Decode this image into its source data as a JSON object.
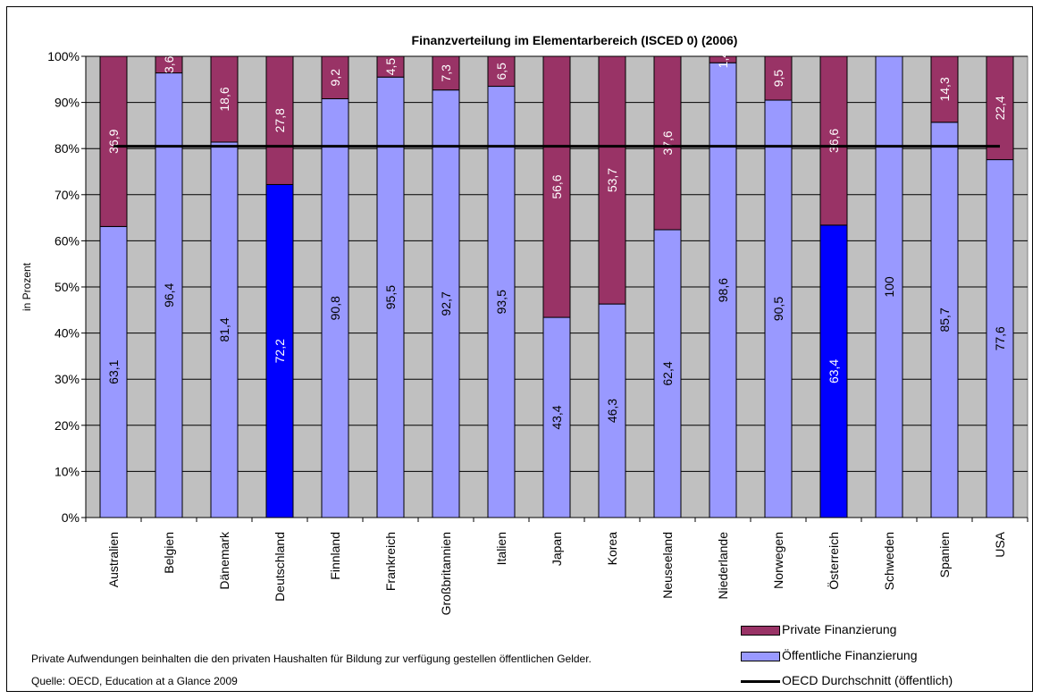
{
  "chart_data": {
    "type": "bar",
    "stacked": true,
    "title": "Finanzverteilung im Elementarbereich (ISCED 0) (2006)",
    "ylabel": "in Prozent",
    "xlabel": "",
    "ylim": [
      0,
      100
    ],
    "yticks": [
      "0%",
      "10%",
      "20%",
      "30%",
      "40%",
      "50%",
      "60%",
      "70%",
      "80%",
      "90%",
      "100%"
    ],
    "grid": true,
    "legend_position": "bottom-right",
    "categories": [
      "Australien",
      "Belgien",
      "Dänemark",
      "Deutschland",
      "Finnland",
      "Frankreich",
      "Großbritannien",
      "Italien",
      "Japan",
      "Korea",
      "Neuseeland",
      "Niederlande",
      "Norwegen",
      "Österreich",
      "Schweden",
      "Spanien",
      "USA"
    ],
    "series": [
      {
        "name": "Öffentliche Finanzierung",
        "color": "#9999ff",
        "highlight_color": "#0000ff",
        "highlight": [
          "Deutschland",
          "Österreich"
        ],
        "values": [
          63.1,
          96.4,
          81.4,
          72.2,
          90.8,
          95.5,
          92.7,
          93.5,
          43.4,
          46.3,
          62.4,
          98.6,
          90.5,
          63.4,
          100,
          85.7,
          77.6
        ],
        "labels": [
          "63,1",
          "96,4",
          "81,4",
          "72,2",
          "90,8",
          "95,5",
          "92,7",
          "93,5",
          "43,4",
          "46,3",
          "62,4",
          "98,6",
          "90,5",
          "63,4",
          "100",
          "85,7",
          "77,6"
        ]
      },
      {
        "name": "Private Finanzierung",
        "color": "#993366",
        "values": [
          36.9,
          3.6,
          18.6,
          27.8,
          9.2,
          4.5,
          7.3,
          6.5,
          56.6,
          53.7,
          37.6,
          1.4,
          9.5,
          36.6,
          0,
          14.3,
          22.4
        ],
        "labels": [
          "36,9",
          "3,6",
          "18,6",
          "27,8",
          "9,2",
          "4,5",
          "7,3",
          "6,5",
          "56,6",
          "53,7",
          "37,6",
          "1,4",
          "9,5",
          "36,6",
          "",
          "14,3",
          "22,4"
        ]
      }
    ],
    "reference_line": {
      "name": "OECD Durchschnitt (öffentlich)",
      "value": 80.5,
      "color": "#000000"
    },
    "plot_background": "#c0c0c0"
  },
  "legend": {
    "private": "Private Finanzierung",
    "public": "Öffentliche Finanzierung",
    "oecd": "OECD Durchschnitt (öffentlich)"
  },
  "notes": {
    "line1": "Private Aufwendungen beinhalten die den privaten Haushalten für Bildung zur verfügung gestellen öffentlichen Gelder.",
    "line2": "Quelle: OECD, Education at a Glance 2009"
  }
}
